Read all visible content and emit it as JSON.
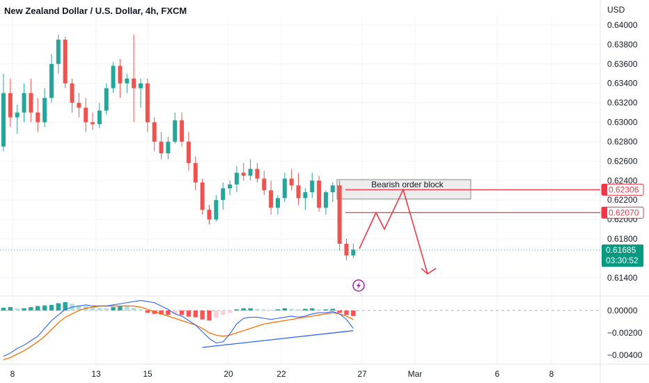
{
  "header": {
    "title": "New Zealand Dollar / U.S. Dollar, 4h, FXCM"
  },
  "colors": {
    "up": "#26a69a",
    "down": "#ef5350",
    "drawing": "#f23645",
    "grid": "#f0f3fa",
    "axis_text": "#131722",
    "macd_line": "#2962ff",
    "signal_line": "#ff6d00"
  },
  "chart_data": [
    {
      "type": "candlestick",
      "title": "New Zealand Dollar / U.S. Dollar, 4h, FXCM",
      "currency_label": "USD",
      "ylim": [
        0.6122,
        0.641
      ],
      "y_ticks": [
        "0.64000",
        "0.63800",
        "0.63600",
        "0.63400",
        "0.63200",
        "0.63000",
        "0.62800",
        "0.62600",
        "0.62400",
        "0.62200",
        "0.62000",
        "0.61800",
        "0.61400"
      ],
      "x_ticks": [
        "8",
        "13",
        "15",
        "20",
        "22",
        "27",
        "Mar",
        "6",
        "8"
      ],
      "price_badges": [
        {
          "value": "0.62306",
          "style": "outline"
        },
        {
          "value": "0.62070",
          "style": "outline"
        },
        {
          "value": "0.61685",
          "countdown": "03:30:52",
          "style": "filled"
        }
      ],
      "horizontal_levels": [
        0.62306,
        0.6207
      ],
      "current_price_line": 0.61685,
      "annotation": {
        "text": "Bearish order block",
        "top": 0.6241,
        "bottom": 0.6221
      },
      "projection_path": [
        [
          0.617,
          0.6207
        ],
        [
          0.6188,
          0.62306
        ],
        [
          0.6144
        ]
      ],
      "candles": [
        [
          0.6275,
          0.635,
          0.627,
          0.633
        ],
        [
          0.633,
          0.6345,
          0.6295,
          0.6305
        ],
        [
          0.6305,
          0.6318,
          0.6288,
          0.631
        ],
        [
          0.631,
          0.634,
          0.63,
          0.633
        ],
        [
          0.633,
          0.6345,
          0.63,
          0.631
        ],
        [
          0.631,
          0.6325,
          0.629,
          0.63
        ],
        [
          0.63,
          0.6335,
          0.6295,
          0.6325
        ],
        [
          0.6325,
          0.637,
          0.632,
          0.636
        ],
        [
          0.636,
          0.639,
          0.635,
          0.6385
        ],
        [
          0.6385,
          0.6388,
          0.6335,
          0.634
        ],
        [
          0.634,
          0.6345,
          0.631,
          0.632
        ],
        [
          0.632,
          0.633,
          0.6305,
          0.6315
        ],
        [
          0.6315,
          0.6325,
          0.629,
          0.63
        ],
        [
          0.63,
          0.631,
          0.6292,
          0.6298
        ],
        [
          0.6298,
          0.632,
          0.6294,
          0.6312
        ],
        [
          0.6312,
          0.634,
          0.6308,
          0.6335
        ],
        [
          0.6335,
          0.6362,
          0.633,
          0.6358
        ],
        [
          0.6358,
          0.6365,
          0.6325,
          0.634
        ],
        [
          0.634,
          0.635,
          0.633,
          0.6345
        ],
        [
          0.6345,
          0.639,
          0.63,
          0.6335
        ],
        [
          0.6335,
          0.6345,
          0.6315,
          0.634
        ],
        [
          0.634,
          0.6345,
          0.629,
          0.63
        ],
        [
          0.63,
          0.6305,
          0.627,
          0.628
        ],
        [
          0.628,
          0.629,
          0.6262,
          0.6268
        ],
        [
          0.6268,
          0.6285,
          0.6262,
          0.628
        ],
        [
          0.628,
          0.631,
          0.6278,
          0.6302
        ],
        [
          0.6302,
          0.631,
          0.6275,
          0.628
        ],
        [
          0.628,
          0.629,
          0.625,
          0.6258
        ],
        [
          0.6258,
          0.6265,
          0.623,
          0.6238
        ],
        [
          0.6238,
          0.6242,
          0.6205,
          0.621
        ],
        [
          0.621,
          0.6215,
          0.6195,
          0.62
        ],
        [
          0.62,
          0.6225,
          0.6198,
          0.622
        ],
        [
          0.622,
          0.6238,
          0.621,
          0.6232
        ],
        [
          0.6232,
          0.624,
          0.6225,
          0.6236
        ],
        [
          0.6236,
          0.6255,
          0.6228,
          0.6248
        ],
        [
          0.6248,
          0.6258,
          0.624,
          0.6245
        ],
        [
          0.6245,
          0.6262,
          0.624,
          0.6252
        ],
        [
          0.6252,
          0.6258,
          0.6238,
          0.6242
        ],
        [
          0.6242,
          0.625,
          0.6225,
          0.623
        ],
        [
          0.623,
          0.624,
          0.6205,
          0.6212
        ],
        [
          0.6212,
          0.6225,
          0.6205,
          0.6222
        ],
        [
          0.6222,
          0.6248,
          0.6218,
          0.6242
        ],
        [
          0.6242,
          0.6252,
          0.623,
          0.6235
        ],
        [
          0.6235,
          0.6248,
          0.6215,
          0.6222
        ],
        [
          0.6222,
          0.6232,
          0.621,
          0.6228
        ],
        [
          0.6228,
          0.6248,
          0.6222,
          0.624
        ],
        [
          0.624,
          0.6245,
          0.6208,
          0.6212
        ],
        [
          0.6212,
          0.623,
          0.6205,
          0.6228
        ],
        [
          0.6228,
          0.6238,
          0.6218,
          0.6235
        ],
        [
          0.6235,
          0.624,
          0.6168,
          0.6175
        ],
        [
          0.6175,
          0.618,
          0.6158,
          0.6163
        ],
        [
          0.6163,
          0.6175,
          0.616,
          0.6169
        ]
      ]
    },
    {
      "type": "macd",
      "ylim": [
        -0.0048,
        0.0013
      ],
      "y_ticks": [
        "0.00000",
        "−0.00200",
        "−0.00400"
      ],
      "zero_line": 0,
      "histogram": [
        0.00025,
        0.0003,
        0.0002,
        0.0002,
        0.0003,
        0.0004,
        0.00045,
        0.0005,
        0.00065,
        0.00075,
        0.0006,
        0.00045,
        0.0004,
        0.0003,
        0.00025,
        0.0002,
        0.0003,
        0.0004,
        0.00035,
        0.00025,
        0.0001,
        -0.0002,
        -0.0003,
        -0.00035,
        -0.0004,
        -0.0003,
        -0.0004,
        -0.00055,
        -0.0006,
        -0.0008,
        -0.0009,
        -0.00065,
        -0.0004,
        -0.0002,
        0.0001,
        0.0002,
        0.0002,
        0.00015,
        0.0001,
        5e-05,
        0.0001,
        0.0002,
        0.00015,
        0.0001,
        0.00015,
        0.0002,
        0.0001,
        0.0001,
        0.00015,
        -0.0002,
        -0.0004,
        -0.0005
      ],
      "macd_line": [
        -0.0041,
        -0.0038,
        -0.0034,
        -0.0031,
        -0.0027,
        -0.0023,
        -0.0016,
        -0.0009,
        -0.0004,
        0.0001,
        0.0003,
        0.0004,
        0.0005,
        0.0004,
        0.0004,
        0.0004,
        0.0005,
        0.0006,
        0.0007,
        0.0008,
        0.0009,
        0.0008,
        0.0007,
        0.0004,
        0.0001,
        -0.0003,
        -0.0005,
        -0.0009,
        -0.0013,
        -0.0019,
        -0.0025,
        -0.0029,
        -0.0028,
        -0.0021,
        -0.0012,
        -0.0007,
        -0.0006,
        -0.0006,
        -0.0007,
        -0.0008,
        -0.0007,
        -0.0006,
        -0.0005,
        -0.0006,
        -0.0005,
        -0.0003,
        -0.0002,
        -0.0002,
        -0.0001,
        -0.0003,
        -0.0008,
        -0.0016
      ],
      "signal_line": [
        -0.0044,
        -0.0042,
        -0.0039,
        -0.0036,
        -0.0032,
        -0.0028,
        -0.0023,
        -0.0017,
        -0.0011,
        -0.0006,
        -0.0003,
        0.0,
        0.0002,
        0.0003,
        0.0004,
        0.0004,
        0.0004,
        0.0004,
        0.0004,
        0.0004,
        0.0003,
        0.0001,
        -0.0001,
        -0.0003,
        -0.0005,
        -0.0007,
        -0.0009,
        -0.0011,
        -0.0013,
        -0.0016,
        -0.002,
        -0.0022,
        -0.0023,
        -0.0022,
        -0.002,
        -0.0018,
        -0.0016,
        -0.0014,
        -0.0012,
        -0.0011,
        -0.001,
        -0.0009,
        -0.0008,
        -0.0007,
        -0.0006,
        -0.0005,
        -0.0004,
        -0.0003,
        -0.0002,
        -0.0003,
        -0.0005,
        -0.0008
      ],
      "divergence_line": [
        [
          29,
          -0.0033
        ],
        [
          51,
          -0.0018
        ]
      ]
    }
  ]
}
